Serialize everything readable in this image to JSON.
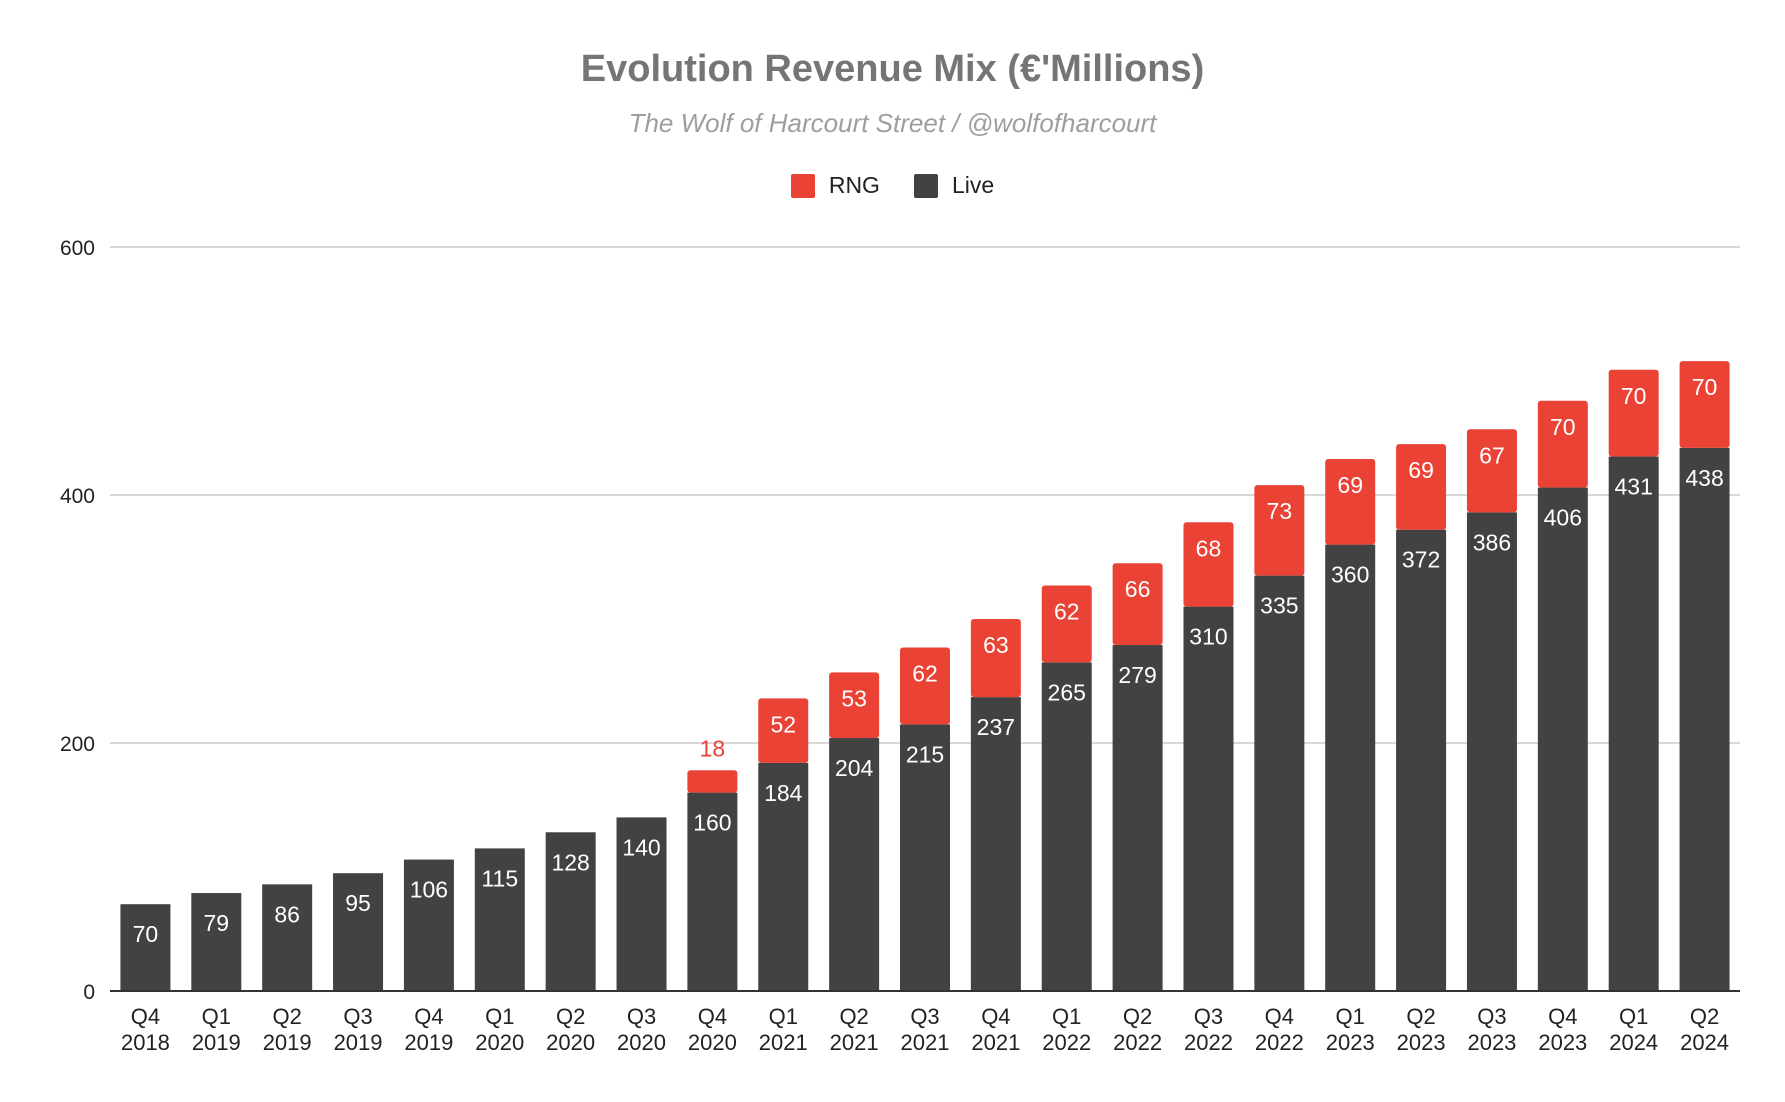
{
  "chart_data": {
    "type": "bar",
    "stacked": true,
    "title": "Evolution Revenue Mix (€'Millions)",
    "subtitle": "The Wolf of Harcourt Street / @wolfofharcourt",
    "categories": [
      [
        "Q4",
        "2018"
      ],
      [
        "Q1",
        "2019"
      ],
      [
        "Q2",
        "2019"
      ],
      [
        "Q3",
        "2019"
      ],
      [
        "Q4",
        "2019"
      ],
      [
        "Q1",
        "2020"
      ],
      [
        "Q2",
        "2020"
      ],
      [
        "Q3",
        "2020"
      ],
      [
        "Q4",
        "2020"
      ],
      [
        "Q1",
        "2021"
      ],
      [
        "Q2",
        "2021"
      ],
      [
        "Q3",
        "2021"
      ],
      [
        "Q4",
        "2021"
      ],
      [
        "Q1",
        "2022"
      ],
      [
        "Q2",
        "2022"
      ],
      [
        "Q3",
        "2022"
      ],
      [
        "Q4",
        "2022"
      ],
      [
        "Q1",
        "2023"
      ],
      [
        "Q2",
        "2023"
      ],
      [
        "Q3",
        "2023"
      ],
      [
        "Q4",
        "2023"
      ],
      [
        "Q1",
        "2024"
      ],
      [
        "Q2",
        "2024"
      ]
    ],
    "series": [
      {
        "name": "Live",
        "color": "#424242",
        "values": [
          70,
          79,
          86,
          95,
          106,
          115,
          128,
          140,
          160,
          184,
          204,
          215,
          237,
          265,
          279,
          310,
          335,
          360,
          372,
          386,
          406,
          431,
          438
        ]
      },
      {
        "name": "RNG",
        "color": "#ea4335",
        "values": [
          null,
          null,
          null,
          null,
          null,
          null,
          null,
          null,
          18,
          52,
          53,
          62,
          63,
          62,
          66,
          68,
          73,
          69,
          69,
          67,
          70,
          70,
          70
        ]
      }
    ],
    "legend_order": [
      "RNG",
      "Live"
    ],
    "legend_position": "top",
    "ylim": [
      0,
      600
    ],
    "yticks": [
      0,
      200,
      400,
      600
    ],
    "grid": true,
    "xlabel": "",
    "ylabel": ""
  }
}
